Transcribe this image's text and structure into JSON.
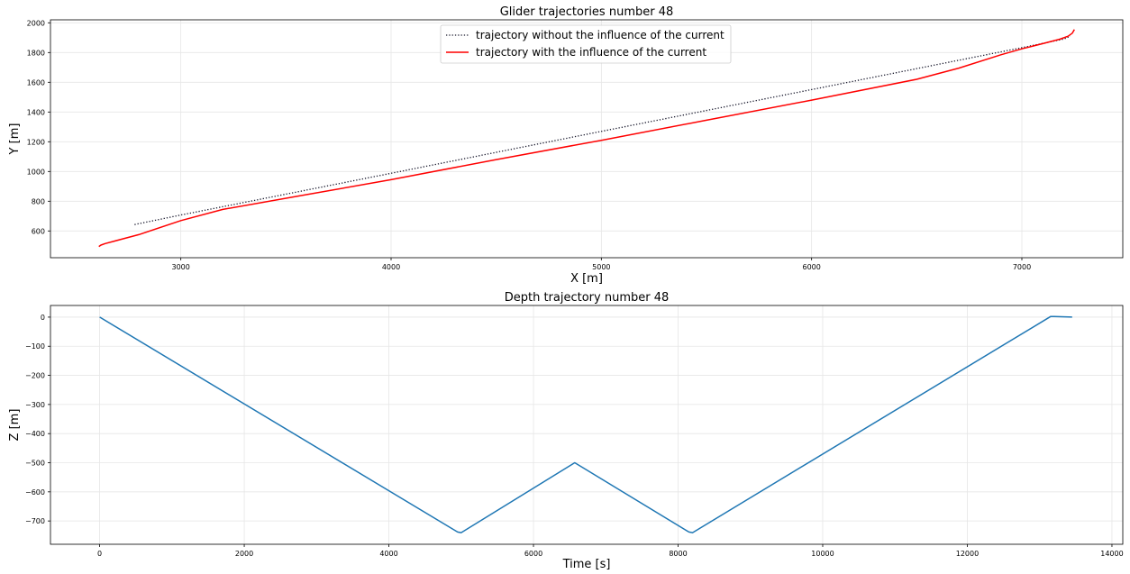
{
  "chart_data": [
    {
      "type": "line",
      "title": "Glider trajectories number 48",
      "xlabel": "X [m]",
      "ylabel": "Y [m]",
      "xlim": [
        2380,
        7480
      ],
      "ylim": [
        420,
        2020
      ],
      "xticks": [
        3000,
        4000,
        5000,
        6000,
        7000
      ],
      "yticks": [
        600,
        800,
        1000,
        1200,
        1400,
        1600,
        1800,
        2000
      ],
      "grid": true,
      "legend_position": "top-center",
      "series": [
        {
          "name": "trajectory without the influence of the current",
          "style": "dotted",
          "color": "#1a1a2e",
          "x": [
            2780,
            3000,
            4000,
            5000,
            6000,
            7000,
            7200,
            7230
          ],
          "y": [
            643,
            707,
            988,
            1270,
            1551,
            1833,
            1891,
            1910
          ]
        },
        {
          "name": "trajectory with the influence of the current",
          "style": "solid",
          "color": "#ff0000",
          "x": [
            2610,
            2620,
            2640,
            2800,
            3000,
            3200,
            3600,
            4000,
            4500,
            5000,
            5500,
            6000,
            6500,
            6700,
            6900,
            7000,
            7100,
            7180,
            7220,
            7240,
            7250
          ],
          "y": [
            495,
            505,
            515,
            575,
            670,
            745,
            845,
            945,
            1080,
            1210,
            1345,
            1480,
            1620,
            1695,
            1785,
            1825,
            1860,
            1890,
            1910,
            1930,
            1955
          ]
        }
      ]
    },
    {
      "type": "line",
      "title": "Depth trajectory number 48",
      "xlabel": "Time [s]",
      "ylabel": "Z [m]",
      "xlim": [
        -680,
        14150
      ],
      "ylim": [
        -780,
        40
      ],
      "xticks": [
        0,
        2000,
        4000,
        6000,
        8000,
        10000,
        12000,
        14000
      ],
      "yticks": [
        0,
        -100,
        -200,
        -300,
        -400,
        -500,
        -600,
        -700
      ],
      "grid": true,
      "series": [
        {
          "color": "#1f77b4",
          "x": [
            0,
            4950,
            5000,
            6570,
            8150,
            8200,
            13150,
            13200,
            13450
          ],
          "y": [
            0,
            -738,
            -740,
            -500,
            -738,
            -740,
            2,
            2,
            0
          ]
        }
      ]
    }
  ]
}
